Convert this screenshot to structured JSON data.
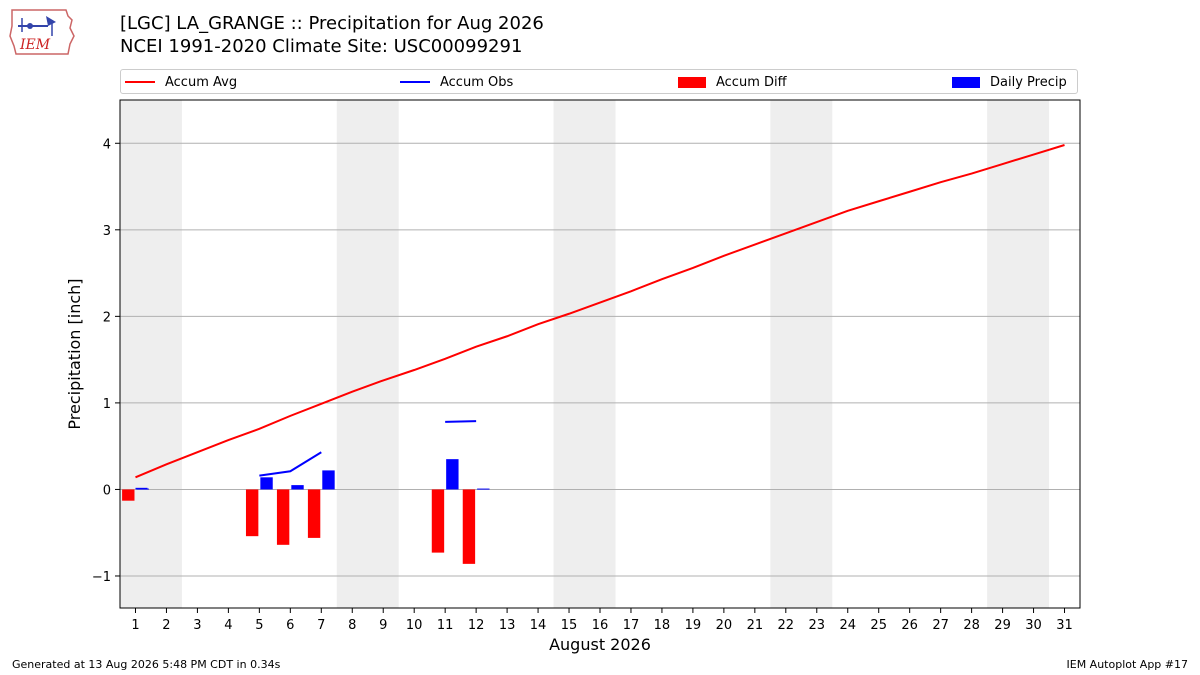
{
  "header": {
    "title_line1": "[LGC] LA_GRANGE :: Precipitation for Aug 2026",
    "title_line2": "NCEI 1991-2020 Climate Site: USC00099291",
    "logo_text": "IEM"
  },
  "legend": {
    "items": [
      {
        "label": "Accum Avg",
        "kind": "line",
        "color": "#ff0000"
      },
      {
        "label": "Accum Obs",
        "kind": "line",
        "color": "#0000ff"
      },
      {
        "label": "Accum Diff",
        "kind": "box",
        "color": "#ff0000"
      },
      {
        "label": "Daily Precip",
        "kind": "box",
        "color": "#0000ff"
      }
    ]
  },
  "footer": {
    "generated": "Generated at 13 Aug 2026 5:48 PM CDT in 0.34s",
    "app": "IEM Autoplot App #17"
  },
  "chart_data": {
    "type": "bar",
    "xlabel": "August 2026",
    "ylabel": "Precipitation [inch]",
    "xlim": [
      0.5,
      31.5
    ],
    "ylim": [
      -1.37,
      4.5
    ],
    "yticks": [
      -1,
      0,
      1,
      2,
      3,
      4
    ],
    "ytick_labels": [
      "−1",
      "0",
      "1",
      "2",
      "3",
      "4"
    ],
    "xticks": [
      1,
      2,
      3,
      4,
      5,
      6,
      7,
      8,
      9,
      10,
      11,
      12,
      13,
      14,
      15,
      16,
      17,
      18,
      19,
      20,
      21,
      22,
      23,
      24,
      25,
      26,
      27,
      28,
      29,
      30,
      31
    ],
    "grid": "horizontal",
    "weekend_shading": [
      [
        1,
        2
      ],
      [
        8,
        9
      ],
      [
        15,
        16
      ],
      [
        22,
        23
      ],
      [
        29,
        30
      ]
    ],
    "shading_color": "#eeeeee",
    "accum_avg": {
      "name": "Accum Avg",
      "color": "#ff0000",
      "days": [
        1,
        2,
        3,
        4,
        5,
        6,
        7,
        8,
        9,
        10,
        11,
        12,
        13,
        14,
        15,
        16,
        17,
        18,
        19,
        20,
        21,
        22,
        23,
        24,
        25,
        26,
        27,
        28,
        29,
        30,
        31
      ],
      "values": [
        0.14,
        0.29,
        0.43,
        0.57,
        0.7,
        0.85,
        0.99,
        1.13,
        1.26,
        1.38,
        1.51,
        1.65,
        1.77,
        1.91,
        2.03,
        2.16,
        2.29,
        2.43,
        2.56,
        2.7,
        2.83,
        2.96,
        3.09,
        3.22,
        3.33,
        3.44,
        3.55,
        3.65,
        3.76,
        3.87,
        3.98
      ]
    },
    "accum_obs": {
      "name": "Accum Obs",
      "color": "#0000ff",
      "segments": [
        {
          "days": [
            1
          ],
          "values": [
            0.01
          ]
        },
        {
          "days": [
            5,
            6,
            7
          ],
          "values": [
            0.16,
            0.21,
            0.43
          ]
        },
        {
          "days": [
            11,
            12
          ],
          "values": [
            0.78,
            0.79
          ]
        }
      ]
    },
    "accum_diff": {
      "name": "Accum Diff",
      "color": "#ff0000",
      "days": [
        1,
        5,
        6,
        7,
        11,
        12
      ],
      "values": [
        -0.13,
        -0.54,
        -0.64,
        -0.56,
        -0.73,
        -0.86
      ]
    },
    "daily_precip": {
      "name": "Daily Precip",
      "color": "#0000ff",
      "days": [
        1,
        5,
        6,
        7,
        11,
        12
      ],
      "values": [
        0.01,
        0.14,
        0.05,
        0.22,
        0.35,
        0.01
      ]
    }
  }
}
